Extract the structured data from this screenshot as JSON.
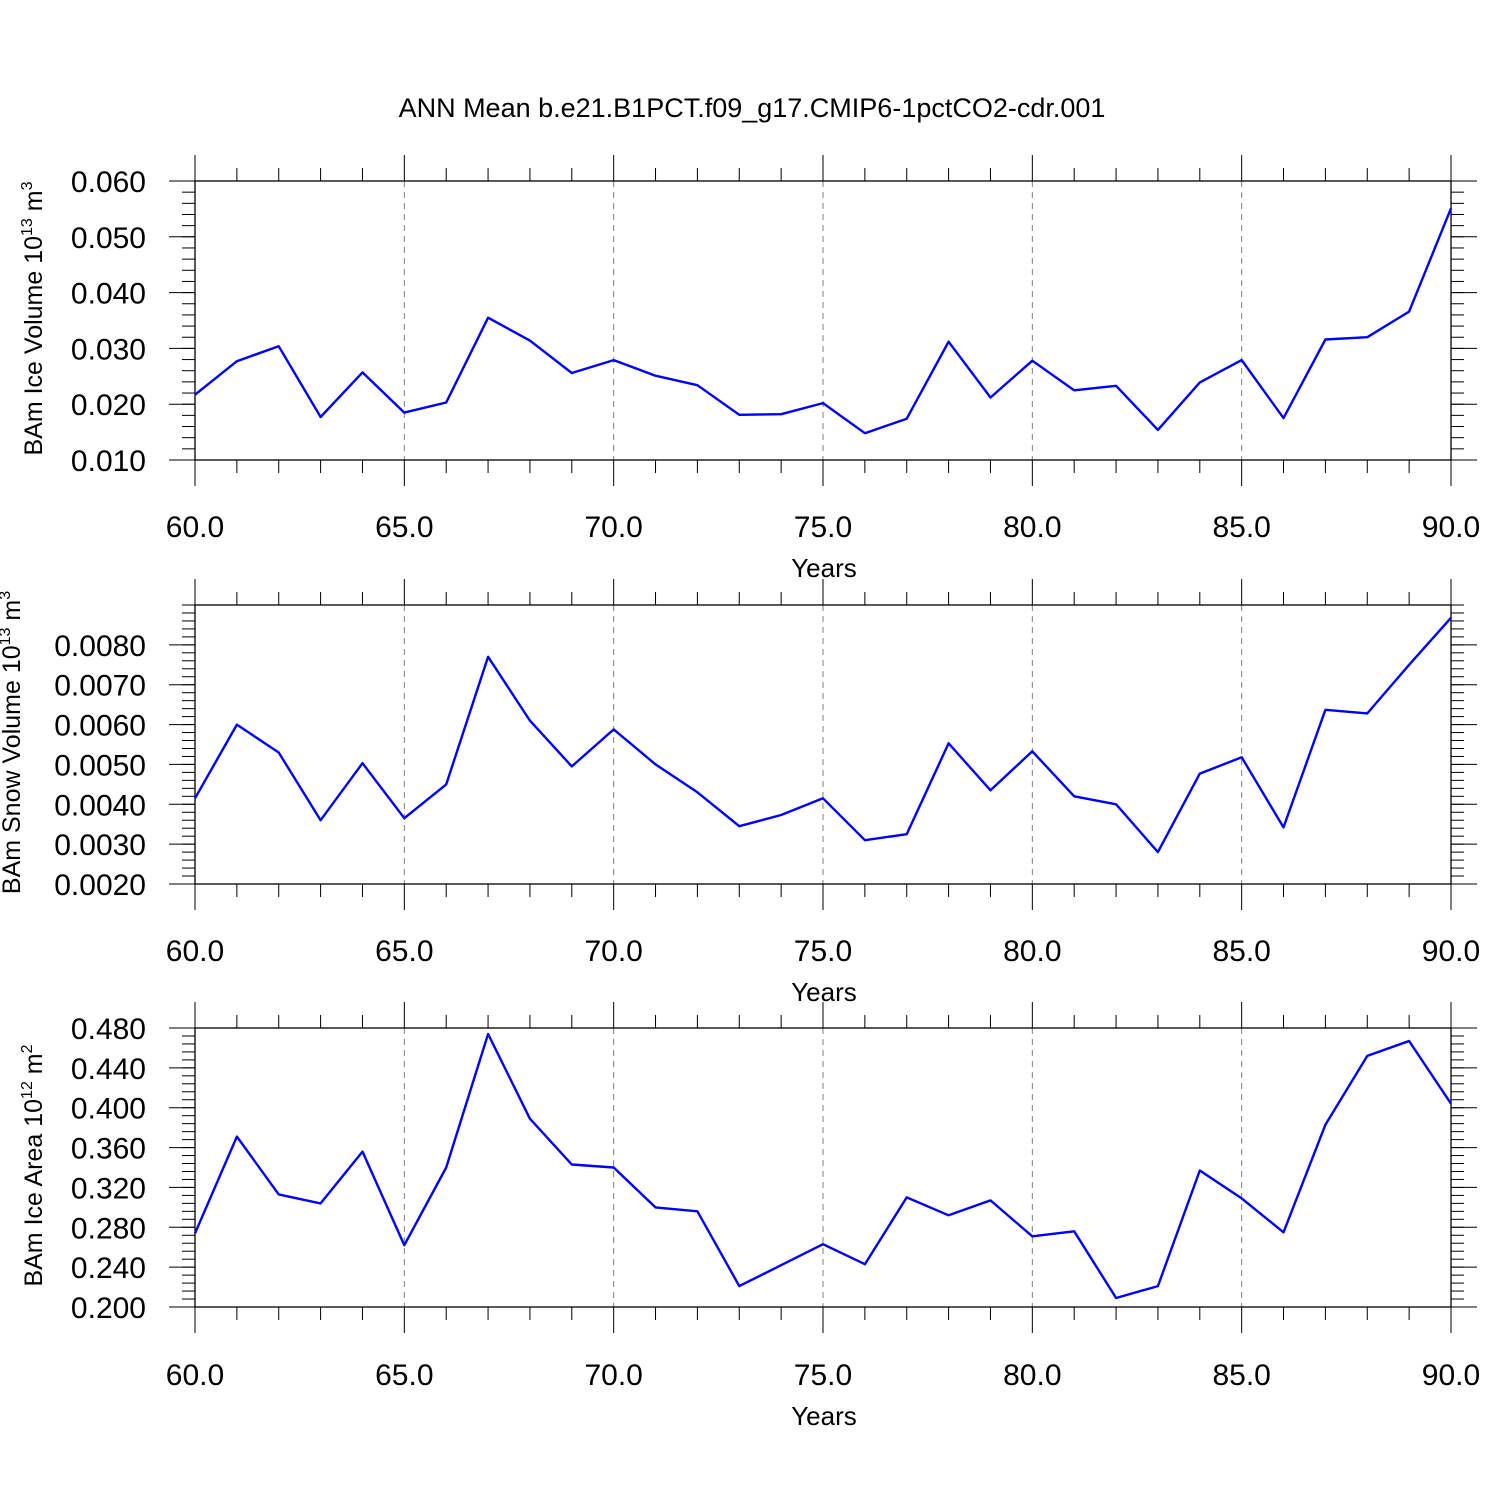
{
  "figure_title": "ANN Mean b.e21.B1PCT.f09_g17.CMIP6-1pctCO2-cdr.001",
  "colors": {
    "series": "#0000ff",
    "axes": "#000000",
    "grid": "#7f7f7f",
    "background": "#ffffff"
  },
  "chart_data": [
    {
      "type": "line",
      "title": "",
      "xlabel": "Years",
      "ylabel": "BAm Ice Volume 10",
      "ylabel_sup": "13",
      "ylabel_unit": " m",
      "ylabel_unit_sup": "3",
      "xlim": [
        60,
        90
      ],
      "ylim": [
        0.01,
        0.06
      ],
      "xticks": [
        60,
        65,
        70,
        75,
        80,
        85,
        90
      ],
      "xtick_labels": [
        "60.0",
        "65.0",
        "70.0",
        "75.0",
        "80.0",
        "85.0",
        "90.0"
      ],
      "yticks": [
        0.01,
        0.02,
        0.03,
        0.04,
        0.05,
        0.06
      ],
      "ytick_labels": [
        "0.010",
        "0.020",
        "0.030",
        "0.040",
        "0.050",
        "0.060"
      ],
      "y_minor_step": 0.002,
      "grid": "vertical dashed at major x ticks",
      "series": [
        {
          "x": [
            60,
            61,
            62,
            63,
            64,
            65,
            66,
            67,
            68,
            69,
            70,
            71,
            72,
            73,
            74,
            75,
            76,
            77,
            78,
            79,
            80,
            81,
            82,
            83,
            84,
            85,
            86,
            87,
            88,
            89,
            90
          ],
          "values": [
            0.0217,
            0.0277,
            0.0304,
            0.0177,
            0.0257,
            0.0185,
            0.0203,
            0.0355,
            0.0314,
            0.0256,
            0.0279,
            0.0251,
            0.0234,
            0.0181,
            0.0182,
            0.0202,
            0.0148,
            0.0174,
            0.0312,
            0.0212,
            0.0278,
            0.0225,
            0.0233,
            0.0154,
            0.0239,
            0.0279,
            0.0175,
            0.0316,
            0.032,
            0.0366,
            0.0551
          ]
        }
      ]
    },
    {
      "type": "line",
      "title": "",
      "xlabel": "Years",
      "ylabel": "BAm Snow Volume 10",
      "ylabel_sup": "13",
      "ylabel_unit": " m",
      "ylabel_unit_sup": "3",
      "xlim": [
        60,
        90
      ],
      "ylim": [
        0.002,
        0.009
      ],
      "xticks": [
        60,
        65,
        70,
        75,
        80,
        85,
        90
      ],
      "xtick_labels": [
        "60.0",
        "65.0",
        "70.0",
        "75.0",
        "80.0",
        "85.0",
        "90.0"
      ],
      "yticks": [
        0.002,
        0.003,
        0.004,
        0.005,
        0.006,
        0.007,
        0.008
      ],
      "ytick_labels": [
        "0.0020",
        "0.0030",
        "0.0040",
        "0.0050",
        "0.0060",
        "0.0070",
        "0.0080"
      ],
      "y_minor_step": 0.0002,
      "grid": "vertical dashed at major x ticks",
      "series": [
        {
          "x": [
            60,
            61,
            62,
            63,
            64,
            65,
            66,
            67,
            68,
            69,
            70,
            71,
            72,
            73,
            74,
            75,
            76,
            77,
            78,
            79,
            80,
            81,
            82,
            83,
            84,
            85,
            86,
            87,
            88,
            89,
            90
          ],
          "values": [
            0.00415,
            0.006,
            0.0053,
            0.0036,
            0.00503,
            0.00365,
            0.0045,
            0.0077,
            0.0061,
            0.00495,
            0.00588,
            0.005,
            0.0043,
            0.00345,
            0.00373,
            0.00415,
            0.0031,
            0.00325,
            0.00553,
            0.00435,
            0.00533,
            0.0042,
            0.004,
            0.0028,
            0.00477,
            0.00518,
            0.00342,
            0.00637,
            0.00628,
            0.0075,
            0.00868
          ]
        }
      ]
    },
    {
      "type": "line",
      "title": "",
      "xlabel": "Years",
      "ylabel": "BAm Ice Area 10",
      "ylabel_sup": "12",
      "ylabel_unit": " m",
      "ylabel_unit_sup": "2",
      "xlim": [
        60,
        90
      ],
      "ylim": [
        0.2,
        0.48
      ],
      "xticks": [
        60,
        65,
        70,
        75,
        80,
        85,
        90
      ],
      "xtick_labels": [
        "60.0",
        "65.0",
        "70.0",
        "75.0",
        "80.0",
        "85.0",
        "90.0"
      ],
      "yticks": [
        0.2,
        0.24,
        0.28,
        0.32,
        0.36,
        0.4,
        0.44,
        0.48
      ],
      "ytick_labels": [
        "0.200",
        "0.240",
        "0.280",
        "0.320",
        "0.360",
        "0.400",
        "0.440",
        "0.480"
      ],
      "y_minor_step": 0.008,
      "grid": "vertical dashed at major x ticks",
      "series": [
        {
          "x": [
            60,
            61,
            62,
            63,
            64,
            65,
            66,
            67,
            68,
            69,
            70,
            71,
            72,
            73,
            74,
            75,
            76,
            77,
            78,
            79,
            80,
            81,
            82,
            83,
            84,
            85,
            86,
            87,
            88,
            89,
            90
          ],
          "values": [
            0.274,
            0.371,
            0.313,
            0.304,
            0.356,
            0.262,
            0.34,
            0.474,
            0.389,
            0.343,
            0.34,
            0.3,
            0.296,
            0.221,
            0.242,
            0.263,
            0.243,
            0.31,
            0.292,
            0.307,
            0.271,
            0.276,
            0.209,
            0.221,
            0.337,
            0.309,
            0.275,
            0.383,
            0.452,
            0.467,
            0.404
          ]
        }
      ]
    }
  ]
}
